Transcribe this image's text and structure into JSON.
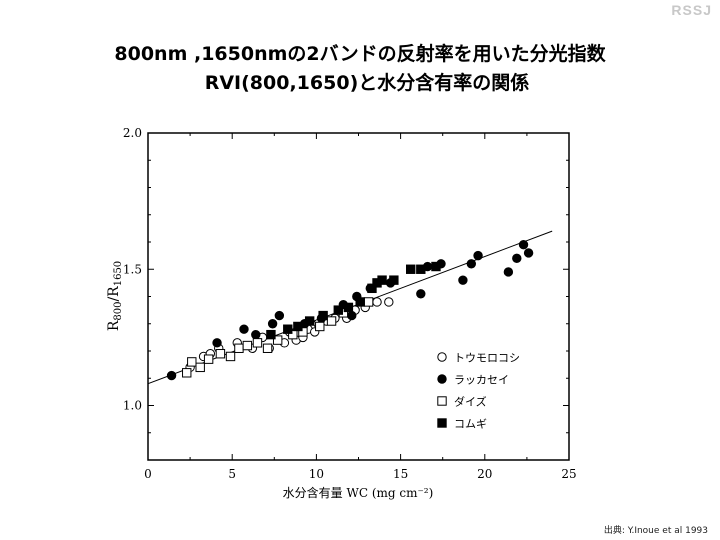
{
  "brand": "RSSJ",
  "title": {
    "line1": "800nm ,1650nmの2バンドの反射率を用いた分光指数",
    "line2": "RVI(800,1650)と水分含有率の関係"
  },
  "source": "出典: Y.Inoue et al 1993",
  "chart_data": {
    "type": "scatter",
    "title": "",
    "xlabel": "水分含有量 WC (mg cm⁻²)",
    "ylabel": "R800/R1650",
    "ylabel_main": "R",
    "ylabel_sub1": "800",
    "ylabel_sep": "/R",
    "ylabel_sub2": "1650",
    "xlim": [
      0,
      25
    ],
    "ylim": [
      0.8,
      2.0
    ],
    "xticks": [
      0,
      5,
      10,
      15,
      20,
      25
    ],
    "yticks": [
      1.0,
      1.5,
      2.0
    ],
    "ytick_labels": [
      "1.0",
      "1.5",
      "2.0"
    ],
    "legend_position": "lower-right",
    "regression": {
      "x": [
        0,
        24
      ],
      "y": [
        1.08,
        1.64
      ]
    },
    "series": [
      {
        "name": "トウモロコシ",
        "marker": "circle",
        "fill": "open",
        "points": [
          [
            2.5,
            1.14
          ],
          [
            3.3,
            1.18
          ],
          [
            3.7,
            1.19
          ],
          [
            4.2,
            1.21
          ],
          [
            5.3,
            1.23
          ],
          [
            6.2,
            1.21
          ],
          [
            6.8,
            1.25
          ],
          [
            7.2,
            1.21
          ],
          [
            8.1,
            1.23
          ],
          [
            8.8,
            1.24
          ],
          [
            9.2,
            1.25
          ],
          [
            9.5,
            1.28
          ],
          [
            10.1,
            1.3
          ],
          [
            10.6,
            1.31
          ],
          [
            11.1,
            1.32
          ],
          [
            11.8,
            1.32
          ],
          [
            12.3,
            1.35
          ],
          [
            12.9,
            1.36
          ],
          [
            13.6,
            1.38
          ],
          [
            14.3,
            1.38
          ],
          [
            9.9,
            1.27
          ],
          [
            8.4,
            1.27
          ]
        ]
      },
      {
        "name": "ラッカセイ",
        "marker": "circle",
        "fill": "solid",
        "points": [
          [
            1.4,
            1.11
          ],
          [
            4.1,
            1.23
          ],
          [
            5.7,
            1.28
          ],
          [
            6.4,
            1.26
          ],
          [
            7.4,
            1.3
          ],
          [
            7.8,
            1.33
          ],
          [
            9.3,
            1.3
          ],
          [
            10.3,
            1.32
          ],
          [
            11.6,
            1.37
          ],
          [
            12.4,
            1.4
          ],
          [
            12.1,
            1.33
          ],
          [
            13.2,
            1.43
          ],
          [
            14.4,
            1.45
          ],
          [
            16.2,
            1.41
          ],
          [
            16.6,
            1.51
          ],
          [
            18.7,
            1.46
          ],
          [
            19.2,
            1.52
          ],
          [
            19.6,
            1.55
          ],
          [
            21.4,
            1.49
          ],
          [
            21.9,
            1.54
          ],
          [
            22.3,
            1.59
          ],
          [
            22.6,
            1.56
          ],
          [
            17.4,
            1.52
          ]
        ]
      },
      {
        "name": "ダイズ",
        "marker": "square",
        "fill": "open",
        "points": [
          [
            2.3,
            1.12
          ],
          [
            2.6,
            1.16
          ],
          [
            3.1,
            1.14
          ],
          [
            3.6,
            1.17
          ],
          [
            4.3,
            1.19
          ],
          [
            4.9,
            1.18
          ],
          [
            5.4,
            1.21
          ],
          [
            5.9,
            1.22
          ],
          [
            6.5,
            1.23
          ],
          [
            7.1,
            1.21
          ],
          [
            7.7,
            1.24
          ],
          [
            8.6,
            1.26
          ],
          [
            9.2,
            1.27
          ],
          [
            10.2,
            1.29
          ],
          [
            10.9,
            1.31
          ],
          [
            11.6,
            1.34
          ],
          [
            13.1,
            1.38
          ]
        ]
      },
      {
        "name": "コムギ",
        "marker": "square",
        "fill": "solid",
        "points": [
          [
            7.3,
            1.26
          ],
          [
            8.3,
            1.28
          ],
          [
            8.9,
            1.29
          ],
          [
            9.6,
            1.31
          ],
          [
            10.4,
            1.33
          ],
          [
            11.3,
            1.35
          ],
          [
            11.9,
            1.36
          ],
          [
            12.6,
            1.38
          ],
          [
            13.3,
            1.43
          ],
          [
            13.6,
            1.45
          ],
          [
            13.9,
            1.46
          ],
          [
            14.6,
            1.46
          ],
          [
            15.6,
            1.5
          ],
          [
            16.2,
            1.5
          ],
          [
            17.1,
            1.51
          ]
        ]
      }
    ]
  }
}
